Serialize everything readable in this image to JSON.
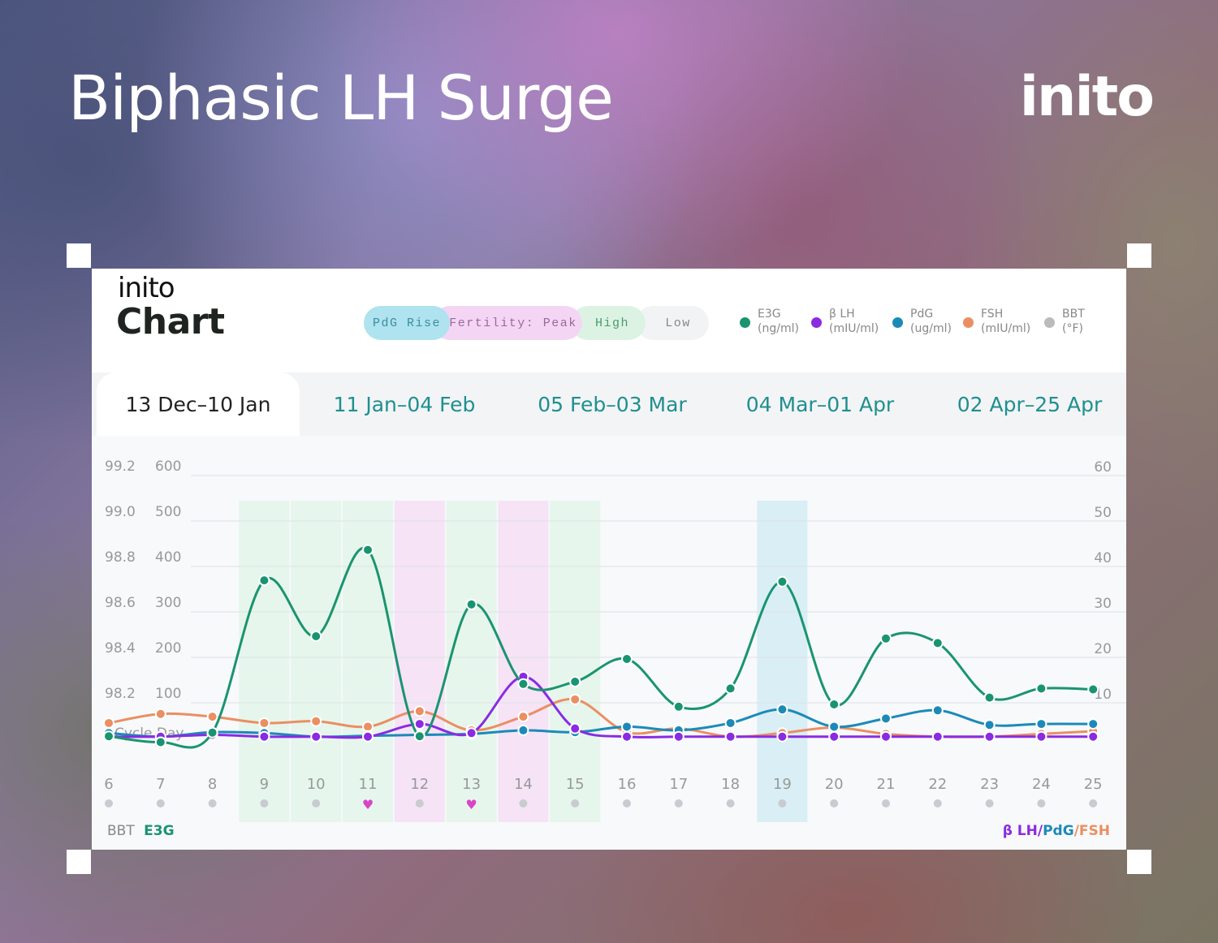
{
  "header": {
    "title": "Biphasic LH Surge",
    "brand": "inito"
  },
  "card": {
    "logo": "inito",
    "title": "Chart",
    "phases": [
      {
        "label": "PdG Rise",
        "bg": "#aee3ef",
        "color": "#3a8ea0"
      },
      {
        "label": "Fertility: Peak",
        "bg": "#f4d6f4",
        "color": "#9a6a9a"
      },
      {
        "label": "High",
        "bg": "#dcf3e4",
        "color": "#4a9a6a"
      },
      {
        "label": "Low",
        "bg": "#f2f3f5",
        "color": "#888888"
      }
    ],
    "legend": [
      {
        "name": "E3G",
        "unit": "(ng/ml)",
        "color": "#1a9470"
      },
      {
        "name": "β LH",
        "unit": "(mIU/ml)",
        "color": "#8a2be2"
      },
      {
        "name": "PdG",
        "unit": "(ug/ml)",
        "color": "#1c8ab8"
      },
      {
        "name": "FSH",
        "unit": "(mIU/ml)",
        "color": "#ea8f62"
      },
      {
        "name": "BBT",
        "unit": "(°F)",
        "color": "#bbbbbb"
      }
    ],
    "tabs": [
      "13 Dec–10 Jan",
      "11 Jan–04 Feb",
      "05 Feb–03 Mar",
      "04 Mar–01 Apr",
      "02 Apr–25 Apr"
    ],
    "active_tab": 0,
    "footer": {
      "bbt": "BBT",
      "e3g": "E3G",
      "lh": "β LH",
      "slash1": "/",
      "pdg": "PdG",
      "slash2": "/",
      "fsh": "FSH"
    }
  },
  "chart_data": {
    "type": "line",
    "x_label_inline": "Cycle Day",
    "x": [
      6,
      7,
      8,
      9,
      10,
      11,
      12,
      13,
      14,
      15,
      16,
      17,
      18,
      19,
      20,
      21,
      22,
      23,
      24,
      25
    ],
    "y_left_bbt_ticks": [
      "99.2",
      "99.0",
      "98.8",
      "98.6",
      "98.4",
      "98.2"
    ],
    "y_left_e3g_ticks": [
      "600",
      "500",
      "400",
      "300",
      "200",
      "100"
    ],
    "y_right_ticks": [
      "60",
      "50",
      "40",
      "30",
      "20",
      "10"
    ],
    "y_left_e3g_range": [
      0,
      600
    ],
    "y_right_range": [
      0,
      60
    ],
    "day_bands": {
      "high": [
        9,
        10,
        11,
        13,
        15
      ],
      "peak": [
        12,
        14
      ],
      "pdg_rise": [
        19
      ]
    },
    "day_markers": [
      "dot",
      "dot",
      "dot",
      "dot",
      "dot",
      "heart",
      "dot",
      "heart",
      "dot",
      "dot",
      "dot",
      "dot",
      "dot",
      "dot",
      "dot",
      "dot",
      "dot",
      "dot",
      "dot",
      "dot"
    ],
    "series": [
      {
        "name": "E3G",
        "axis": "left",
        "color": "#1a9470",
        "values": [
          5,
          -8,
          13,
          348,
          225,
          415,
          5,
          295,
          120,
          125,
          175,
          70,
          110,
          345,
          75,
          220,
          210,
          90,
          110,
          108
        ]
      },
      {
        "name": "β LH",
        "axis": "right",
        "color": "#8a2be2",
        "values": [
          0.4,
          0.4,
          0.8,
          0.4,
          0.4,
          0.4,
          3.2,
          1.2,
          13.6,
          2.2,
          0.4,
          0.4,
          0.4,
          0.4,
          0.4,
          0.4,
          0.4,
          0.4,
          0.4,
          0.4
        ]
      },
      {
        "name": "PdG",
        "axis": "right",
        "color": "#1c8ab8",
        "values": [
          1.2,
          0.4,
          1.4,
          1.2,
          0.4,
          0.6,
          0.8,
          1.0,
          1.8,
          1.4,
          2.6,
          1.8,
          3.4,
          6.4,
          2.6,
          4.4,
          6.2,
          3.0,
          3.2,
          3.2
        ]
      },
      {
        "name": "FSH",
        "axis": "right",
        "color": "#ea8f62",
        "values": [
          3.4,
          5.4,
          4.8,
          3.4,
          3.8,
          2.6,
          6.0,
          1.8,
          4.8,
          8.6,
          1.4,
          2.2,
          0.4,
          1.2,
          2.4,
          1.0,
          0.4,
          0.4,
          1.0,
          1.6
        ]
      }
    ]
  }
}
